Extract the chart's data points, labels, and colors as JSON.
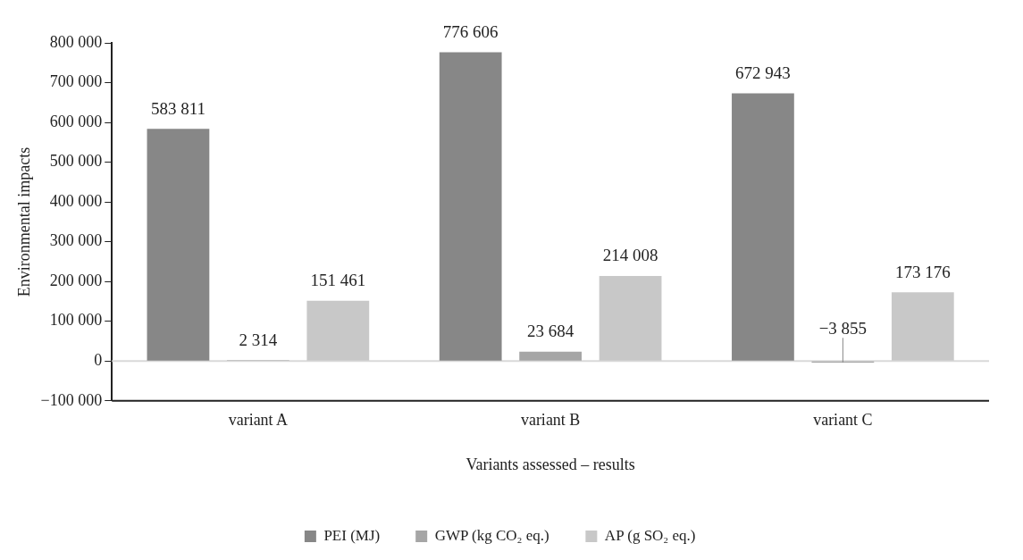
{
  "chart_data": {
    "type": "bar",
    "xlabel": "Variants assessed – results",
    "ylabel": "Environmental impacts",
    "categories": [
      "variant A",
      "variant B",
      "variant C"
    ],
    "series": [
      {
        "name": "PEI (MJ)",
        "color": "#878787",
        "values": [
          583811,
          776606,
          672943
        ]
      },
      {
        "name": "GWP (kg CO₂ eq.)",
        "color": "#a6a6a6",
        "values": [
          2314,
          23684,
          -3855
        ]
      },
      {
        "name": "AP (g SO₂ eq.)",
        "color": "#c8c8c8",
        "values": [
          151461,
          214008,
          173176
        ]
      }
    ],
    "ylim": [
      -100000,
      800000
    ],
    "yticks": [
      -100000,
      0,
      100000,
      200000,
      300000,
      400000,
      500000,
      600000,
      700000,
      800000
    ],
    "ref_lines": [
      {
        "axis": "y",
        "value": 0,
        "color": "#d9d9d9"
      }
    ],
    "data_labels": true,
    "grid": false,
    "legend": "bottom"
  }
}
